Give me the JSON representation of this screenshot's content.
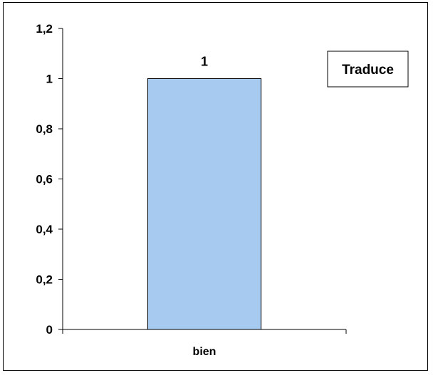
{
  "chart_data": {
    "type": "bar",
    "categories": [
      "bien"
    ],
    "series": [
      {
        "name": "Traduce",
        "values": [
          1
        ],
        "color": "#a6caf0"
      }
    ],
    "data_labels": [
      "1"
    ],
    "ylim": [
      0,
      1.2
    ],
    "yticks": [
      0,
      0.2,
      0.4,
      0.6,
      0.8,
      1,
      1.2
    ],
    "ytick_labels": [
      "0",
      "0,2",
      "0,4",
      "0,6",
      "0,8",
      "1",
      "1,2"
    ],
    "title": "",
    "xlabel": "",
    "ylabel": "",
    "grid": false,
    "legend": {
      "position": "top-right",
      "label": "Traduce"
    }
  }
}
